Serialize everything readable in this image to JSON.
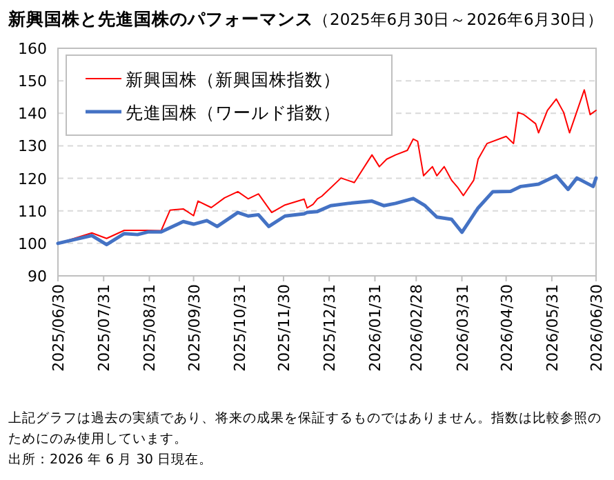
{
  "chart_data": {
    "type": "line",
    "title": "新興国株と先進国株のパフォーマンス",
    "subtitle": "（2025年6月30日～2026年6月30日）",
    "series": [
      {
        "name": "新興国株（新興国株指数）",
        "color": "#ff0000",
        "x": [
          "2025-06-30",
          "2025-07-23",
          "2025-08-02",
          "2025-08-14",
          "2025-08-30",
          "2025-09-08",
          "2025-09-14",
          "2025-09-23",
          "2025-09-30",
          "2025-10-03",
          "2025-10-12",
          "2025-10-21",
          "2025-10-30",
          "2025-11-06",
          "2025-11-13",
          "2025-11-22",
          "2025-12-01",
          "2025-12-14",
          "2025-12-16",
          "2025-12-20",
          "2025-12-23",
          "2025-12-26",
          "2026-01-08",
          "2026-01-17",
          "2026-01-29",
          "2026-02-03",
          "2026-02-08",
          "2026-02-14",
          "2026-02-22",
          "2026-02-26",
          "2026-03-01",
          "2026-03-05",
          "2026-03-11",
          "2026-03-14",
          "2026-03-19",
          "2026-03-24",
          "2026-03-28",
          "2026-04-01",
          "2026-04-08",
          "2026-04-11",
          "2026-04-17",
          "2026-04-30",
          "2026-05-05",
          "2026-05-08",
          "2026-05-12",
          "2026-05-20",
          "2026-05-22",
          "2026-05-28",
          "2026-06-03",
          "2026-06-08",
          "2026-06-12",
          "2026-06-22",
          "2026-06-26",
          "2026-06-30"
        ],
        "values": [
          100,
          103.2,
          101.5,
          104,
          104,
          103.9,
          110.2,
          110.6,
          108.5,
          113,
          111,
          114,
          115.9,
          113.7,
          115.2,
          109.5,
          111.8,
          113.6,
          110.9,
          112,
          113.7,
          114.5,
          120.1,
          118.7,
          127.2,
          123.6,
          125.9,
          127.2,
          128.6,
          132.1,
          131.4,
          120.8,
          123.6,
          120.8,
          123.6,
          119.4,
          117.3,
          114.7,
          119.4,
          125.9,
          130.7,
          132.9,
          130.7,
          140.3,
          139.6,
          136.8,
          134,
          140.9,
          144.4,
          140.3,
          134,
          147.2,
          139.6,
          140.9
        ]
      },
      {
        "name": "先進国株（ワールド指数）",
        "color": "#4472c4",
        "x": [
          "2025-06-30",
          "2025-07-23",
          "2025-08-02",
          "2025-08-14",
          "2025-08-23",
          "2025-08-30",
          "2025-09-08",
          "2025-09-23",
          "2025-09-30",
          "2025-10-09",
          "2025-10-16",
          "2025-10-30",
          "2025-11-06",
          "2025-11-13",
          "2025-11-20",
          "2025-12-01",
          "2025-12-14",
          "2025-12-16",
          "2025-12-23",
          "2026-01-01",
          "2026-01-13",
          "2026-01-29",
          "2026-02-06",
          "2026-02-14",
          "2026-02-26",
          "2026-03-06",
          "2026-03-14",
          "2026-03-24",
          "2026-03-31",
          "2026-04-11",
          "2026-04-21",
          "2026-05-03",
          "2026-05-10",
          "2026-05-22",
          "2026-06-03",
          "2026-06-11",
          "2026-06-17",
          "2026-06-28",
          "2026-06-30"
        ],
        "values": [
          100,
          102.4,
          99.6,
          103,
          102.7,
          103.5,
          103.5,
          106.7,
          105.9,
          107,
          105.2,
          109.5,
          108.4,
          108.8,
          105.2,
          108.4,
          109.1,
          109.5,
          109.8,
          111.6,
          112.3,
          113,
          111.6,
          112.3,
          113.8,
          111.6,
          108.1,
          107.4,
          103.4,
          110.9,
          115.9,
          116,
          117.5,
          118.2,
          120.8,
          116.6,
          120.1,
          117.5,
          120.1
        ]
      }
    ],
    "xlim": [
      "2025-06-30",
      "2026-06-30"
    ],
    "xticks": [
      {
        "value": "2025-06-30",
        "label": "2025/06/30"
      },
      {
        "value": "2025-07-31",
        "label": "2025/07/31"
      },
      {
        "value": "2025-08-31",
        "label": "2025/08/31"
      },
      {
        "value": "2025-09-30",
        "label": "2025/09/30"
      },
      {
        "value": "2025-10-31",
        "label": "2025/10/31"
      },
      {
        "value": "2025-11-30",
        "label": "2025/11/30"
      },
      {
        "value": "2025-12-31",
        "label": "2025/12/31"
      },
      {
        "value": "2026-01-31",
        "label": "2026/01/31"
      },
      {
        "value": "2026-02-28",
        "label": "2026/02/28"
      },
      {
        "value": "2026-03-31",
        "label": "2026/03/31"
      },
      {
        "value": "2026-04-30",
        "label": "2026/04/30"
      },
      {
        "value": "2026-05-31",
        "label": "2026/05/31"
      },
      {
        "value": "2026-06-30",
        "label": "2026/06/30"
      }
    ],
    "ylim": [
      90,
      160
    ],
    "yticks": [
      90,
      100,
      110,
      120,
      130,
      140,
      150,
      160
    ],
    "grid": "y",
    "legend": "top left",
    "marker": "none",
    "line_style": "solid",
    "annotations": [
      "上記グラフは過去の実績であり、将来の成果を保証するものではありません。指数は比較参照のためにのみ使用しています。",
      "出所：2026 年 6 月 30 日現在。"
    ]
  }
}
